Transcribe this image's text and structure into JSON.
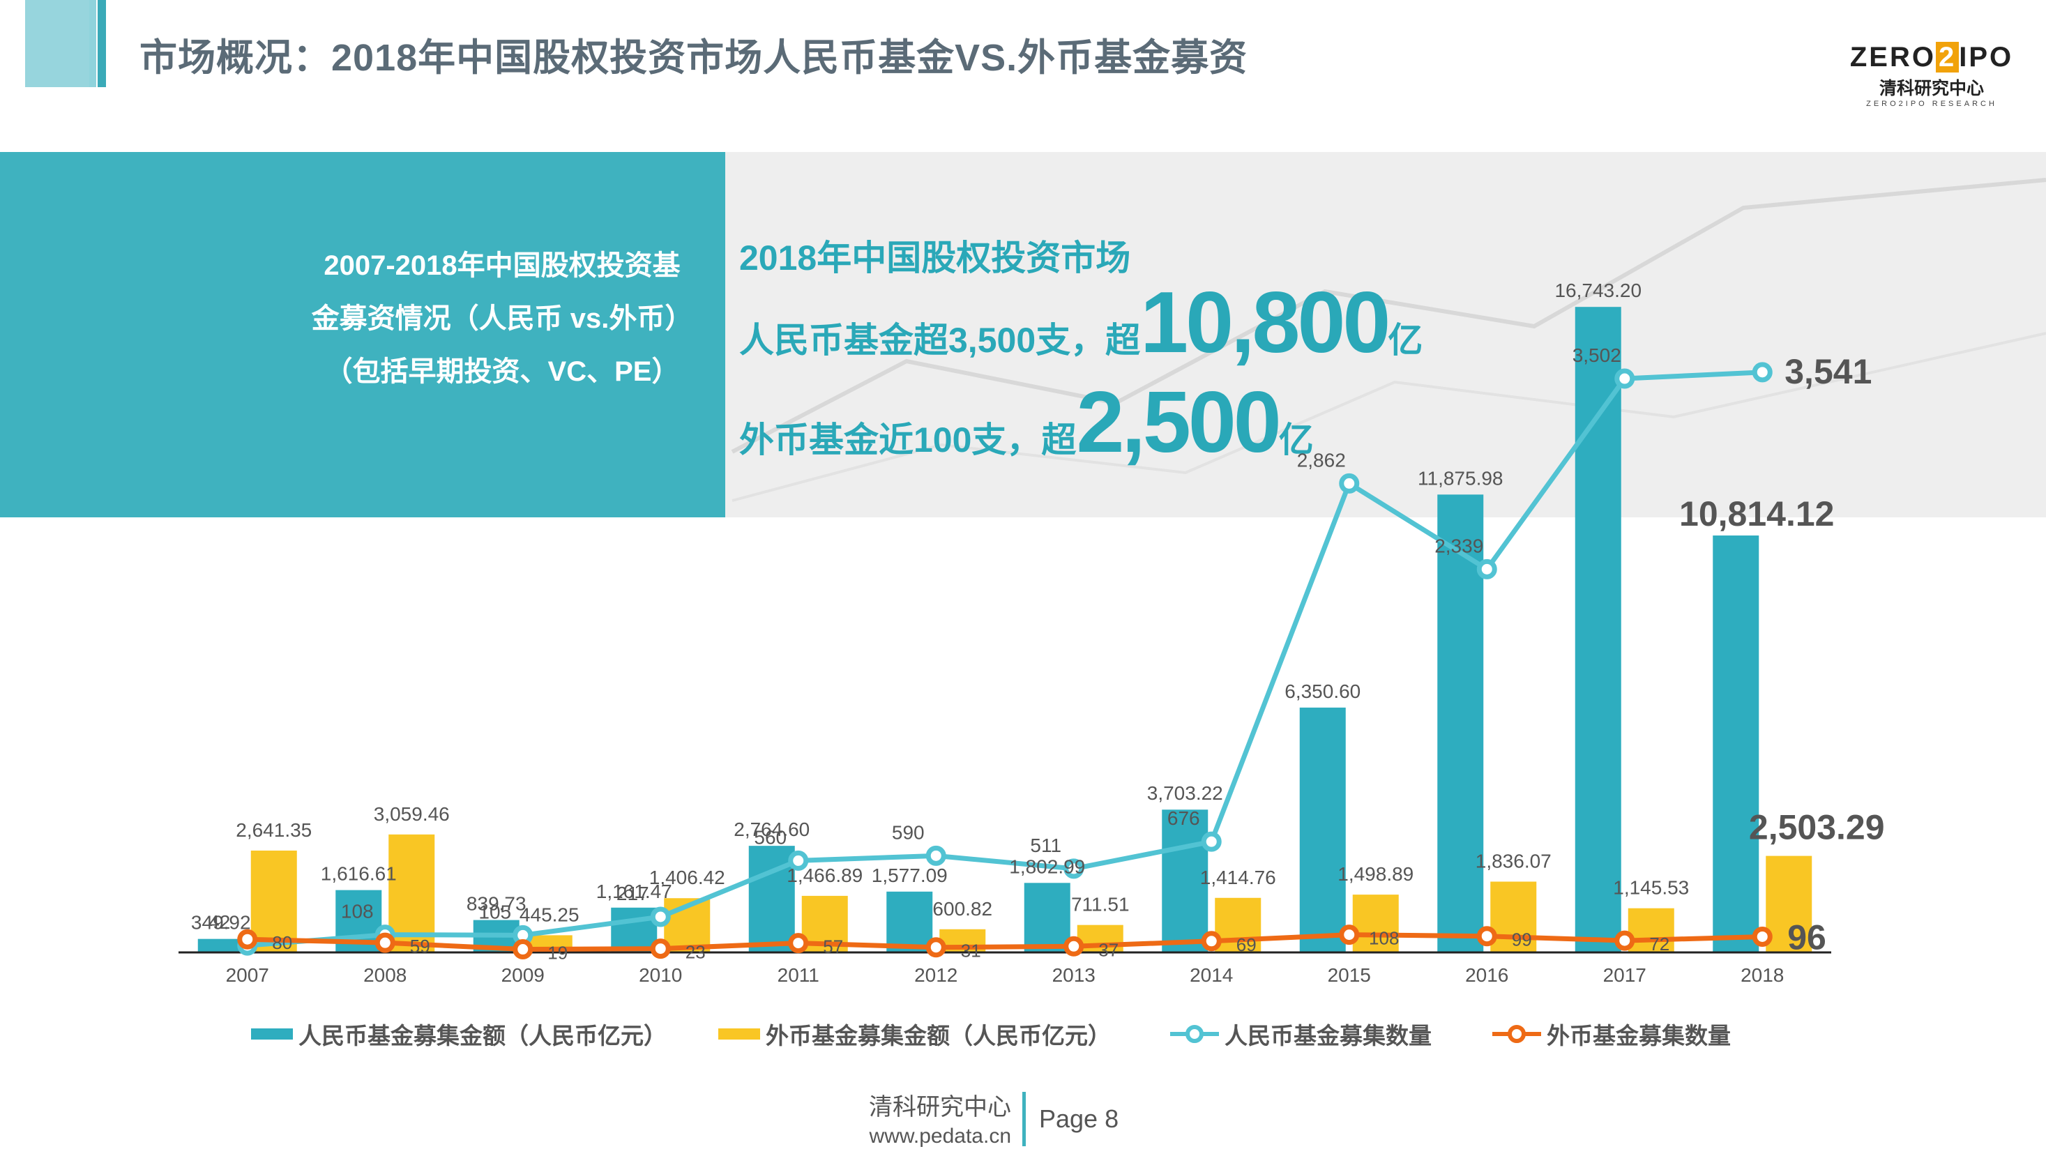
{
  "page": {
    "title": "市场概况：2018年中国股权投资市场人民币基金VS.外币基金募资",
    "logo": {
      "brand_left": "ZERO",
      "brand_mid": "2",
      "brand_right": "IPO",
      "cn": "清科研究中心",
      "en": "ZERO2IPO RESEARCH"
    },
    "box_lines": [
      "2007-2018年中国股权投资基",
      "金募资情况（人民币 vs.外币）",
      "（包括早期投资、VC、PE）"
    ],
    "highlight": {
      "line1": "2018年中国股权投资市场",
      "line2_pre": "人民币基金超3,500支，超",
      "line2_big": "10,800",
      "line2_post": "亿",
      "line3_pre": "外币基金近100支，超",
      "line3_big": "2,500",
      "line3_post": "亿"
    },
    "footer": {
      "org": "清科研究中心",
      "url": "www.pedata.cn",
      "page": "Page  8"
    }
  },
  "colors": {
    "teal": "#2eadbf",
    "yellow": "#f9c624",
    "line_teal": "#52c3d3",
    "line_orange": "#ee6a15",
    "title": "#5b6b77"
  },
  "chart_data": {
    "type": "bar",
    "title": "2007-2018年中国股权投资基金募资情况（人民币 vs.外币）",
    "categories": [
      "2007",
      "2008",
      "2009",
      "2010",
      "2011",
      "2012",
      "2013",
      "2014",
      "2015",
      "2016",
      "2017",
      "2018"
    ],
    "series": [
      {
        "name": "人民币基金募集金额（人民币亿元）",
        "kind": "bar",
        "axis": "amount",
        "values": [
          349.92,
          1616.61,
          839.73,
          1161.47,
          2764.6,
          1577.09,
          1802.99,
          3703.22,
          6350.6,
          11875.98,
          16743.2,
          10814.12
        ],
        "labels": [
          "349.92",
          "1,616.61",
          "839.73",
          "1,161.47",
          "2,764.60",
          "1,577.09",
          "1,802.99",
          "3,703.22",
          "6,350.60",
          "11,875.98",
          "16,743.20",
          "10,814.12"
        ]
      },
      {
        "name": "外币基金募集金额（人民币亿元）",
        "kind": "bar",
        "axis": "amount",
        "values": [
          2641.35,
          3059.46,
          445.25,
          1406.42,
          1466.89,
          600.82,
          711.51,
          1414.76,
          1498.89,
          1836.07,
          1145.53,
          2503.29
        ],
        "labels": [
          "2,641.35",
          "3,059.46",
          "445.25",
          "1,406.42",
          "1,466.89",
          "600.82",
          "711.51",
          "1,414.76",
          "1,498.89",
          "1,836.07",
          "1,145.53",
          "2,503.29"
        ]
      },
      {
        "name": "人民币基金募集数量",
        "kind": "line",
        "axis": "count",
        "values": [
          42,
          108,
          105,
          217,
          560,
          590,
          511,
          676,
          2862,
          2339,
          3502,
          3541
        ],
        "labels": [
          "42",
          "108",
          "105",
          "217",
          "560",
          "590",
          "511",
          "676",
          "2,862",
          "2,339",
          "3,502",
          "3,541"
        ]
      },
      {
        "name": "外币基金募集数量",
        "kind": "line",
        "axis": "count",
        "values": [
          80,
          59,
          19,
          23,
          57,
          31,
          37,
          69,
          108,
          99,
          72,
          96
        ],
        "labels": [
          "80",
          "59",
          "19",
          "23",
          "57",
          "31",
          "37",
          "69",
          "108",
          "99",
          "72",
          "96"
        ]
      }
    ],
    "ylim_amount": [
      0,
      17000
    ],
    "ylim_count": [
      0,
      4000
    ],
    "grid": false,
    "legend": "bottom"
  }
}
